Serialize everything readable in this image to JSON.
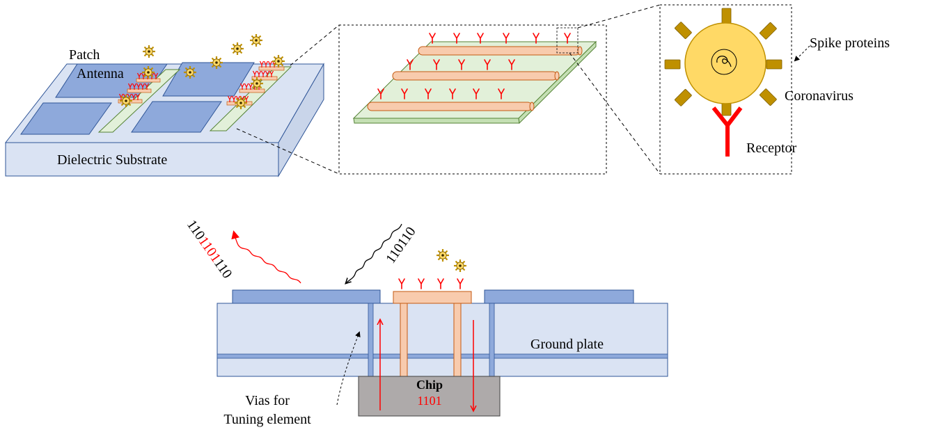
{
  "labels": {
    "patch_antenna_line1": "Patch",
    "patch_antenna_line2": "Antenna",
    "dielectric_substrate": "Dielectric Substrate",
    "spike_proteins": "Spike proteins",
    "coronavirus": "Coronavirus",
    "receptor": "Receptor",
    "ground_plate": "Ground plate",
    "chip": "Chip",
    "chip_code": "1101",
    "vias_line1": "Vias for",
    "vias_line2": "Tuning element",
    "signal_in": "110110",
    "signal_out_prefix": "110",
    "signal_out_mid": "1101",
    "signal_out_suffix": "110"
  },
  "colors": {
    "patch_blue": "#8ea9db",
    "substrate_fill": "#dae3f3",
    "strip_green": "#e2f0d9",
    "tube_orange": "#f8cbad",
    "receptor_red": "#ff0000",
    "virus_body": "#ffd966",
    "virus_spike": "#bf9000",
    "chip_gray": "#aeaaaa"
  }
}
